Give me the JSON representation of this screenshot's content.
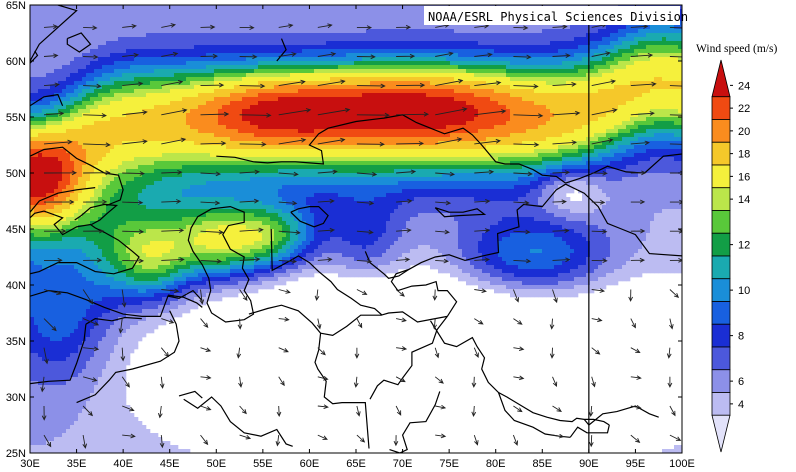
{
  "credit": "NOAA/ESRL Physical Sciences Division",
  "lat_ticks": [
    "65N",
    "60N",
    "55N",
    "50N",
    "45N",
    "40N",
    "35N",
    "30N",
    "25N"
  ],
  "lon_ticks": [
    "30E",
    "35E",
    "40E",
    "45E",
    "50E",
    "55E",
    "60E",
    "65E",
    "70E",
    "75E",
    "80E",
    "85E",
    "90E",
    "95E",
    "100E"
  ],
  "extent": {
    "lon_min": 30,
    "lon_max": 100,
    "lat_min": 25,
    "lat_max": 65
  },
  "reference_line_lon": 90,
  "colorbar": {
    "title": "Wind speed (m/s)",
    "labels": [
      "24",
      "22",
      "20",
      "18",
      "16",
      "14",
      "12",
      "10",
      "8",
      "6",
      "4"
    ],
    "colors": [
      "#c80f0f",
      "#f04a12",
      "#fa8c1e",
      "#f5c82a",
      "#f5f03c",
      "#bbe64a",
      "#59c83a",
      "#129e46",
      "#1aaab0",
      "#1a8ed8",
      "#1860e0",
      "#1a2ed4",
      "#4c58dc",
      "#8c90e8",
      "#bcbcf2",
      "#e2e2fa"
    ],
    "bands": [
      [
        4,
        5
      ],
      [
        5,
        6
      ],
      [
        6,
        7
      ],
      [
        7,
        8
      ],
      [
        8,
        9
      ],
      [
        9,
        10
      ],
      [
        10,
        11
      ],
      [
        11,
        12
      ],
      [
        12,
        13
      ],
      [
        13,
        14
      ],
      [
        14,
        16
      ],
      [
        16,
        18
      ],
      [
        18,
        20
      ],
      [
        20,
        22
      ],
      [
        22,
        24
      ]
    ]
  },
  "wind_field": {
    "units": "m/s",
    "features": [
      {
        "lon": 72,
        "lat": 56,
        "max_speed": 24
      },
      {
        "lon": 50,
        "lat": 44,
        "max_speed": 20
      },
      {
        "lon": 30,
        "lat": 49.5,
        "max_speed": 20
      },
      {
        "lon": 70,
        "lat": 32,
        "max_speed": 3
      }
    ]
  }
}
